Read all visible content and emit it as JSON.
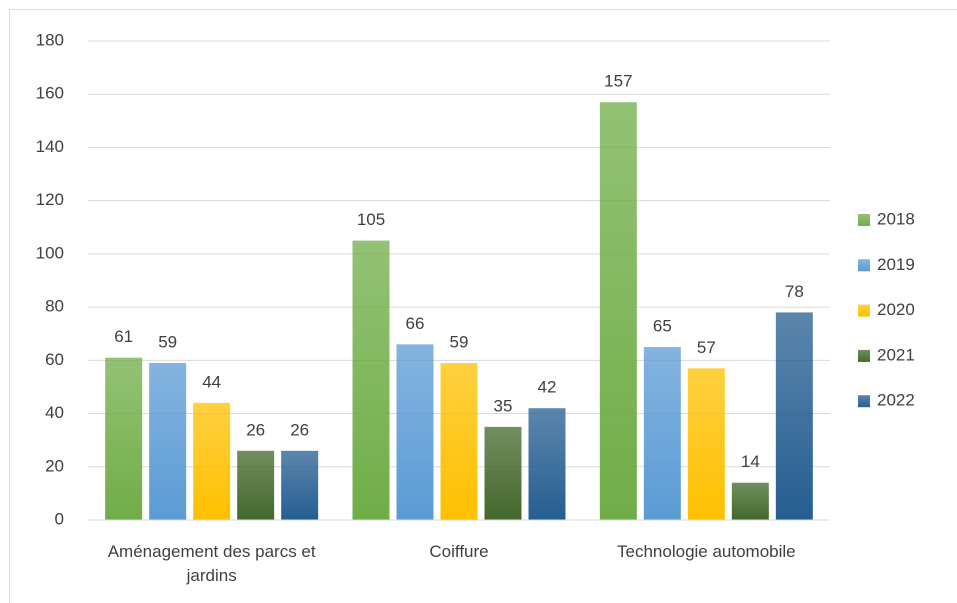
{
  "chart_data": {
    "type": "bar",
    "categories": [
      "Aménagement des parcs et jardins",
      "Coiffure",
      "Technologie automobile"
    ],
    "series": [
      {
        "name": "2018",
        "color": "#70ad47",
        "values": [
          61,
          105,
          157
        ]
      },
      {
        "name": "2019",
        "color": "#5b9bd5",
        "values": [
          59,
          66,
          65
        ]
      },
      {
        "name": "2020",
        "color": "#ffc000",
        "values": [
          44,
          59,
          57
        ]
      },
      {
        "name": "2021",
        "color": "#43682b",
        "values": [
          26,
          35,
          14
        ]
      },
      {
        "name": "2022",
        "color": "#255e91",
        "values": [
          26,
          42,
          78
        ]
      }
    ],
    "ylim": [
      0,
      180
    ],
    "yticks": [
      0,
      20,
      40,
      60,
      80,
      100,
      120,
      140,
      160,
      180
    ],
    "grid": true,
    "legend": "right"
  }
}
